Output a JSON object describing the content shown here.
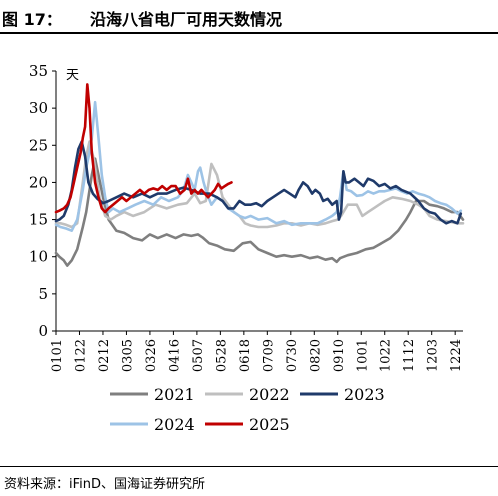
{
  "figure": {
    "label": "图 17：",
    "title": "沿海八省电厂可用天数情况"
  },
  "source": "资料来源：iFinD、国海证券研究所",
  "chart_data": {
    "type": "line",
    "ylabel": "天",
    "ylim": [
      0,
      35
    ],
    "yticks": [
      0,
      5,
      10,
      15,
      20,
      25,
      30,
      35
    ],
    "xticks": [
      "0101",
      "0122",
      "0212",
      "0305",
      "0326",
      "0416",
      "0507",
      "0528",
      "0618",
      "0709",
      "0730",
      "0820",
      "0910",
      "1001",
      "1022",
      "1112",
      "1203",
      "1224"
    ],
    "x_unit": "day-of-year",
    "legend_position": "bottom",
    "series": [
      {
        "name": "2021",
        "color": "#7f7f7f",
        "points": [
          [
            1,
            10.5
          ],
          [
            4,
            10
          ],
          [
            8,
            9.5
          ],
          [
            11,
            8.8
          ],
          [
            15,
            9.5
          ],
          [
            20,
            11
          ],
          [
            25,
            14
          ],
          [
            28,
            16
          ],
          [
            33,
            21
          ],
          [
            36,
            23.2
          ],
          [
            39,
            21
          ],
          [
            43,
            18
          ],
          [
            48,
            15
          ],
          [
            55,
            13.5
          ],
          [
            62,
            13.2
          ],
          [
            70,
            12.5
          ],
          [
            78,
            12.2
          ],
          [
            85,
            13
          ],
          [
            92,
            12.5
          ],
          [
            100,
            13
          ],
          [
            108,
            12.5
          ],
          [
            115,
            13
          ],
          [
            122,
            12.8
          ],
          [
            128,
            13
          ],
          [
            132,
            12.6
          ],
          [
            138,
            11.8
          ],
          [
            145,
            11.5
          ],
          [
            152,
            11
          ],
          [
            160,
            10.8
          ],
          [
            168,
            11.8
          ],
          [
            175,
            12
          ],
          [
            182,
            11
          ],
          [
            190,
            10.5
          ],
          [
            198,
            10
          ],
          [
            205,
            10.2
          ],
          [
            212,
            10
          ],
          [
            220,
            10.2
          ],
          [
            228,
            9.8
          ],
          [
            235,
            10
          ],
          [
            242,
            9.6
          ],
          [
            248,
            9.8
          ],
          [
            252,
            9.3
          ],
          [
            255,
            9.8
          ],
          [
            262,
            10.2
          ],
          [
            270,
            10.5
          ],
          [
            278,
            11
          ],
          [
            285,
            11.2
          ],
          [
            292,
            11.8
          ],
          [
            300,
            12.5
          ],
          [
            307,
            13.5
          ],
          [
            314,
            15
          ],
          [
            318,
            16
          ],
          [
            323,
            17.5
          ],
          [
            330,
            17.5
          ],
          [
            335,
            17
          ],
          [
            342,
            16.8
          ],
          [
            348,
            16.5
          ],
          [
            355,
            16
          ],
          [
            360,
            16
          ],
          [
            365,
            15
          ]
        ]
      },
      {
        "name": "2022",
        "color": "#bfbfbf",
        "points": [
          [
            1,
            14.5
          ],
          [
            5,
            14.5
          ],
          [
            10,
            14.3
          ],
          [
            15,
            14
          ],
          [
            20,
            14.5
          ],
          [
            25,
            20
          ],
          [
            28,
            23.5
          ],
          [
            31,
            25.5
          ],
          [
            35,
            23
          ],
          [
            40,
            18
          ],
          [
            45,
            15.5
          ],
          [
            50,
            15
          ],
          [
            55,
            15.5
          ],
          [
            62,
            16
          ],
          [
            70,
            15.5
          ],
          [
            80,
            16
          ],
          [
            90,
            17
          ],
          [
            100,
            16.5
          ],
          [
            110,
            17
          ],
          [
            118,
            17.2
          ],
          [
            125,
            18.5
          ],
          [
            130,
            17.2
          ],
          [
            135,
            17.5
          ],
          [
            140,
            22.5
          ],
          [
            145,
            21
          ],
          [
            150,
            18
          ],
          [
            155,
            17
          ],
          [
            160,
            16
          ],
          [
            165,
            15.5
          ],
          [
            170,
            14.5
          ],
          [
            175,
            14.2
          ],
          [
            182,
            14
          ],
          [
            190,
            14
          ],
          [
            198,
            14.2
          ],
          [
            205,
            14.5
          ],
          [
            212,
            14.5
          ],
          [
            220,
            14.2
          ],
          [
            228,
            14.5
          ],
          [
            235,
            14.3
          ],
          [
            242,
            14.5
          ],
          [
            248,
            14.8
          ],
          [
            253,
            15
          ],
          [
            256,
            15.5
          ],
          [
            262,
            17
          ],
          [
            270,
            17
          ],
          [
            275,
            15.5
          ],
          [
            280,
            16
          ],
          [
            285,
            16.5
          ],
          [
            290,
            17
          ],
          [
            295,
            17.5
          ],
          [
            302,
            18
          ],
          [
            310,
            17.8
          ],
          [
            318,
            17.5
          ],
          [
            325,
            17
          ],
          [
            330,
            16.5
          ],
          [
            335,
            15.5
          ],
          [
            342,
            15
          ],
          [
            350,
            14.8
          ],
          [
            360,
            14.5
          ],
          [
            365,
            14.5
          ]
        ]
      },
      {
        "name": "2023",
        "color": "#1f3a6a",
        "points": [
          [
            1,
            14.8
          ],
          [
            4,
            15
          ],
          [
            8,
            15.5
          ],
          [
            12,
            17
          ],
          [
            15,
            19
          ],
          [
            18,
            22
          ],
          [
            21,
            24.5
          ],
          [
            24,
            25.5
          ],
          [
            27,
            23.5
          ],
          [
            30,
            20
          ],
          [
            34,
            18.5
          ],
          [
            38,
            17.8
          ],
          [
            43,
            17.2
          ],
          [
            48,
            17.5
          ],
          [
            55,
            18
          ],
          [
            62,
            18.5
          ],
          [
            70,
            18
          ],
          [
            78,
            18.5
          ],
          [
            85,
            18
          ],
          [
            92,
            18.5
          ],
          [
            100,
            18.5
          ],
          [
            108,
            19
          ],
          [
            115,
            19.3
          ],
          [
            122,
            19
          ],
          [
            130,
            18.5
          ],
          [
            138,
            18.5
          ],
          [
            145,
            18
          ],
          [
            150,
            17.5
          ],
          [
            155,
            16.5
          ],
          [
            160,
            16.5
          ],
          [
            165,
            17.5
          ],
          [
            170,
            17
          ],
          [
            175,
            17
          ],
          [
            180,
            17.2
          ],
          [
            185,
            16.8
          ],
          [
            190,
            17.5
          ],
          [
            195,
            18
          ],
          [
            200,
            18.5
          ],
          [
            205,
            19
          ],
          [
            210,
            18.5
          ],
          [
            215,
            18
          ],
          [
            218,
            19
          ],
          [
            222,
            20
          ],
          [
            226,
            19.5
          ],
          [
            230,
            18.5
          ],
          [
            233,
            19
          ],
          [
            237,
            18.5
          ],
          [
            240,
            17.5
          ],
          [
            244,
            17.8
          ],
          [
            248,
            17
          ],
          [
            252,
            17.5
          ],
          [
            254,
            15
          ],
          [
            256,
            16
          ],
          [
            258,
            21.5
          ],
          [
            260,
            20
          ],
          [
            263,
            20
          ],
          [
            268,
            20.5
          ],
          [
            272,
            20
          ],
          [
            276,
            19.5
          ],
          [
            280,
            20.5
          ],
          [
            285,
            20.2
          ],
          [
            290,
            19.5
          ],
          [
            295,
            19.8
          ],
          [
            300,
            19.2
          ],
          [
            305,
            19.5
          ],
          [
            310,
            19
          ],
          [
            318,
            18.5
          ],
          [
            325,
            17.5
          ],
          [
            330,
            16.5
          ],
          [
            335,
            16
          ],
          [
            340,
            15.8
          ],
          [
            345,
            15
          ],
          [
            350,
            14.5
          ],
          [
            355,
            14.8
          ],
          [
            360,
            14.5
          ],
          [
            363,
            15.8
          ]
        ]
      },
      {
        "name": "2024",
        "color": "#9dc3e6",
        "points": [
          [
            1,
            14.3
          ],
          [
            5,
            14
          ],
          [
            10,
            13.8
          ],
          [
            15,
            13.5
          ],
          [
            20,
            15
          ],
          [
            25,
            19
          ],
          [
            28,
            22
          ],
          [
            31,
            24
          ],
          [
            33,
            26
          ],
          [
            36,
            30.8
          ],
          [
            39,
            26
          ],
          [
            42,
            21
          ],
          [
            45,
            18
          ],
          [
            48,
            16
          ],
          [
            52,
            16.5
          ],
          [
            58,
            16
          ],
          [
            65,
            16.5
          ],
          [
            72,
            17
          ],
          [
            80,
            17.5
          ],
          [
            88,
            17
          ],
          [
            95,
            18
          ],
          [
            102,
            17.5
          ],
          [
            110,
            18
          ],
          [
            115,
            19
          ],
          [
            119,
            21
          ],
          [
            122,
            20
          ],
          [
            125,
            19
          ],
          [
            128,
            21.5
          ],
          [
            130,
            22
          ],
          [
            133,
            20
          ],
          [
            136,
            18.5
          ],
          [
            140,
            17
          ],
          [
            145,
            18
          ],
          [
            150,
            17.5
          ],
          [
            155,
            16.5
          ],
          [
            160,
            16
          ],
          [
            165,
            15.5
          ],
          [
            170,
            15.2
          ],
          [
            175,
            15.5
          ],
          [
            182,
            15
          ],
          [
            190,
            15.2
          ],
          [
            198,
            14.5
          ],
          [
            205,
            14.8
          ],
          [
            212,
            14.3
          ],
          [
            220,
            14.5
          ],
          [
            228,
            14.5
          ],
          [
            235,
            14.5
          ],
          [
            242,
            15
          ],
          [
            248,
            15.5
          ],
          [
            252,
            16
          ],
          [
            255,
            18
          ],
          [
            258,
            21.5
          ],
          [
            261,
            19
          ],
          [
            265,
            18.8
          ],
          [
            270,
            18.2
          ],
          [
            275,
            18.3
          ],
          [
            280,
            18.8
          ],
          [
            285,
            18.5
          ],
          [
            290,
            18.8
          ],
          [
            295,
            18.8
          ],
          [
            300,
            19
          ],
          [
            305,
            19.2
          ],
          [
            310,
            18.8
          ],
          [
            315,
            18.5
          ],
          [
            320,
            18.8
          ],
          [
            325,
            18.5
          ],
          [
            330,
            18.3
          ],
          [
            335,
            18
          ],
          [
            340,
            17.5
          ],
          [
            345,
            17.2
          ],
          [
            350,
            17
          ],
          [
            355,
            16.5
          ],
          [
            360,
            15.8
          ],
          [
            363,
            16.2
          ]
        ]
      },
      {
        "name": "2025",
        "color": "#c00000",
        "points": [
          [
            1,
            16
          ],
          [
            4,
            16.2
          ],
          [
            8,
            16.5
          ],
          [
            11,
            17
          ],
          [
            14,
            18
          ],
          [
            17,
            20
          ],
          [
            20,
            22
          ],
          [
            23,
            24
          ],
          [
            25,
            26
          ],
          [
            27,
            27.5
          ],
          [
            29,
            33.2
          ],
          [
            31,
            30
          ],
          [
            33,
            24
          ],
          [
            36,
            20
          ],
          [
            39,
            18
          ],
          [
            42,
            16.5
          ],
          [
            45,
            16
          ],
          [
            48,
            16.5
          ],
          [
            52,
            17
          ],
          [
            56,
            17.5
          ],
          [
            60,
            18
          ],
          [
            64,
            17.5
          ],
          [
            68,
            18
          ],
          [
            72,
            18.5
          ],
          [
            76,
            19
          ],
          [
            80,
            18.5
          ],
          [
            84,
            19
          ],
          [
            88,
            19.2
          ],
          [
            92,
            19
          ],
          [
            96,
            19.5
          ],
          [
            100,
            19
          ],
          [
            104,
            19.5
          ],
          [
            108,
            19.5
          ],
          [
            112,
            18.5
          ],
          [
            116,
            19
          ],
          [
            119,
            20.5
          ],
          [
            122,
            18.5
          ],
          [
            125,
            19
          ],
          [
            128,
            18.5
          ],
          [
            131,
            19
          ],
          [
            134,
            18.5
          ],
          [
            137,
            18
          ],
          [
            140,
            18.5
          ],
          [
            143,
            19
          ],
          [
            146,
            19.8
          ],
          [
            149,
            19.2
          ],
          [
            152,
            19.5
          ],
          [
            155,
            19.8
          ],
          [
            158,
            20
          ]
        ]
      }
    ]
  }
}
